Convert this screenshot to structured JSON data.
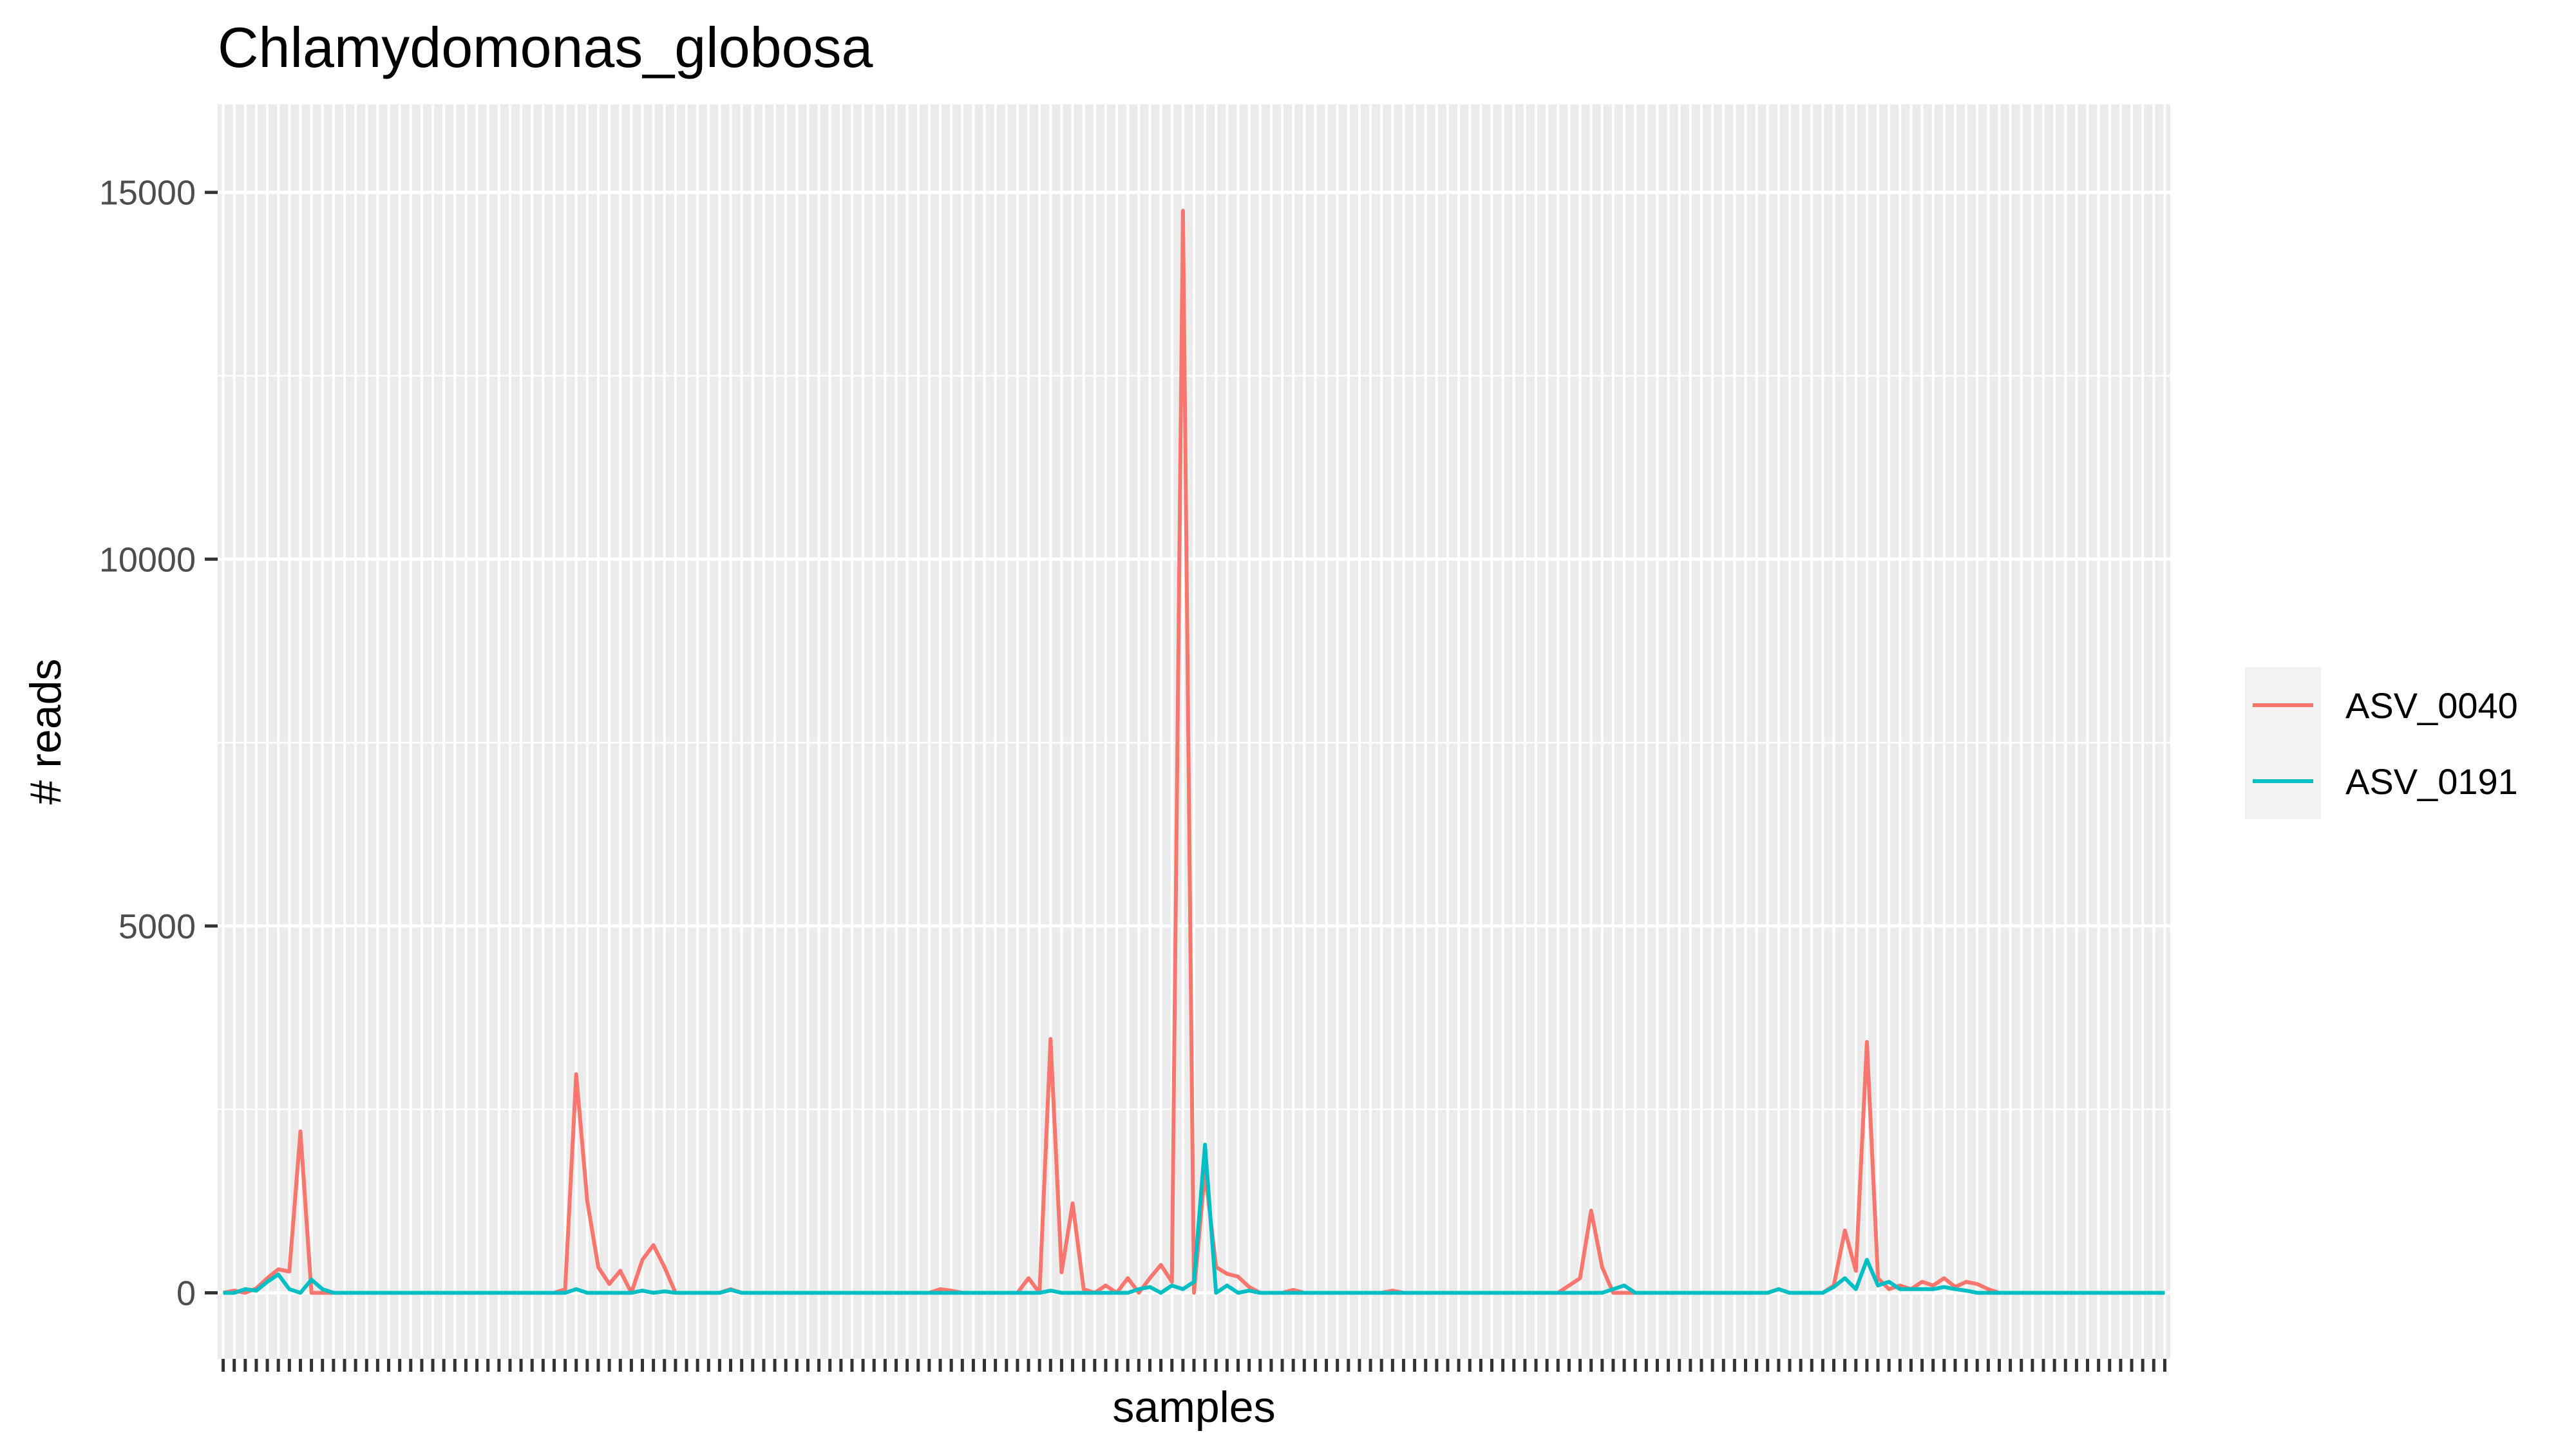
{
  "chart_data": {
    "type": "line",
    "title": "Chlamydomonas_globosa",
    "xlabel": "samples",
    "ylabel": "# reads",
    "ylim": [
      -900,
      16200
    ],
    "y_ticks": [
      0,
      5000,
      10000,
      15000
    ],
    "y_tick_labels": [
      "0",
      "5000",
      "10000",
      "15000"
    ],
    "grid": true,
    "legend_position": "right",
    "n_samples": 177,
    "series": [
      {
        "name": "ASV_0040",
        "color": "#F8766D",
        "points": [
          [
            0,
            0
          ],
          [
            1,
            30
          ],
          [
            2,
            0
          ],
          [
            3,
            60
          ],
          [
            4,
            200
          ],
          [
            5,
            320
          ],
          [
            6,
            290
          ],
          [
            7,
            2200
          ],
          [
            8,
            0
          ],
          [
            30,
            0
          ],
          [
            31,
            50
          ],
          [
            32,
            2980
          ],
          [
            33,
            1250
          ],
          [
            34,
            350
          ],
          [
            35,
            120
          ],
          [
            36,
            300
          ],
          [
            37,
            0
          ],
          [
            38,
            450
          ],
          [
            39,
            650
          ],
          [
            40,
            350
          ],
          [
            41,
            0
          ],
          [
            45,
            0
          ],
          [
            46,
            50
          ],
          [
            47,
            0
          ],
          [
            64,
            0
          ],
          [
            65,
            50
          ],
          [
            66,
            30
          ],
          [
            67,
            0
          ],
          [
            72,
            0
          ],
          [
            73,
            200
          ],
          [
            74,
            0
          ],
          [
            75,
            3460
          ],
          [
            76,
            280
          ],
          [
            77,
            1220
          ],
          [
            78,
            50
          ],
          [
            79,
            0
          ],
          [
            80,
            100
          ],
          [
            81,
            0
          ],
          [
            82,
            200
          ],
          [
            83,
            0
          ],
          [
            84,
            200
          ],
          [
            85,
            380
          ],
          [
            86,
            150
          ],
          [
            87,
            14750
          ],
          [
            88,
            0
          ],
          [
            89,
            1670
          ],
          [
            90,
            350
          ],
          [
            91,
            260
          ],
          [
            92,
            220
          ],
          [
            93,
            80
          ],
          [
            94,
            0
          ],
          [
            96,
            0
          ],
          [
            97,
            40
          ],
          [
            98,
            0
          ],
          [
            105,
            0
          ],
          [
            106,
            30
          ],
          [
            107,
            0
          ],
          [
            121,
            0
          ],
          [
            122,
            100
          ],
          [
            123,
            200
          ],
          [
            124,
            1120
          ],
          [
            125,
            350
          ],
          [
            126,
            0
          ],
          [
            140,
            0
          ],
          [
            141,
            50
          ],
          [
            142,
            0
          ],
          [
            145,
            0
          ],
          [
            146,
            100
          ],
          [
            147,
            850
          ],
          [
            148,
            300
          ],
          [
            149,
            3420
          ],
          [
            150,
            200
          ],
          [
            151,
            50
          ],
          [
            152,
            100
          ],
          [
            153,
            50
          ],
          [
            154,
            150
          ],
          [
            155,
            100
          ],
          [
            156,
            200
          ],
          [
            157,
            80
          ],
          [
            158,
            150
          ],
          [
            159,
            120
          ],
          [
            160,
            50
          ],
          [
            161,
            0
          ],
          [
            176,
            0
          ]
        ]
      },
      {
        "name": "ASV_0191",
        "color": "#00BFC4",
        "points": [
          [
            0,
            0
          ],
          [
            1,
            0
          ],
          [
            2,
            50
          ],
          [
            3,
            30
          ],
          [
            4,
            150
          ],
          [
            5,
            250
          ],
          [
            6,
            50
          ],
          [
            7,
            0
          ],
          [
            8,
            180
          ],
          [
            9,
            50
          ],
          [
            10,
            0
          ],
          [
            30,
            0
          ],
          [
            31,
            0
          ],
          [
            32,
            50
          ],
          [
            33,
            0
          ],
          [
            37,
            0
          ],
          [
            38,
            30
          ],
          [
            39,
            0
          ],
          [
            40,
            20
          ],
          [
            41,
            0
          ],
          [
            45,
            0
          ],
          [
            46,
            40
          ],
          [
            47,
            0
          ],
          [
            72,
            0
          ],
          [
            73,
            0
          ],
          [
            74,
            0
          ],
          [
            75,
            30
          ],
          [
            76,
            0
          ],
          [
            82,
            0
          ],
          [
            83,
            50
          ],
          [
            84,
            80
          ],
          [
            85,
            0
          ],
          [
            86,
            100
          ],
          [
            87,
            50
          ],
          [
            88,
            150
          ],
          [
            89,
            2020
          ],
          [
            90,
            0
          ],
          [
            91,
            100
          ],
          [
            92,
            0
          ],
          [
            93,
            30
          ],
          [
            94,
            0
          ],
          [
            125,
            0
          ],
          [
            126,
            50
          ],
          [
            127,
            100
          ],
          [
            128,
            0
          ],
          [
            140,
            0
          ],
          [
            141,
            50
          ],
          [
            142,
            0
          ],
          [
            145,
            0
          ],
          [
            146,
            80
          ],
          [
            147,
            200
          ],
          [
            148,
            50
          ],
          [
            149,
            450
          ],
          [
            150,
            100
          ],
          [
            151,
            150
          ],
          [
            152,
            50
          ],
          [
            155,
            50
          ],
          [
            156,
            80
          ],
          [
            157,
            50
          ],
          [
            158,
            30
          ],
          [
            159,
            0
          ],
          [
            176,
            0
          ]
        ]
      }
    ]
  }
}
